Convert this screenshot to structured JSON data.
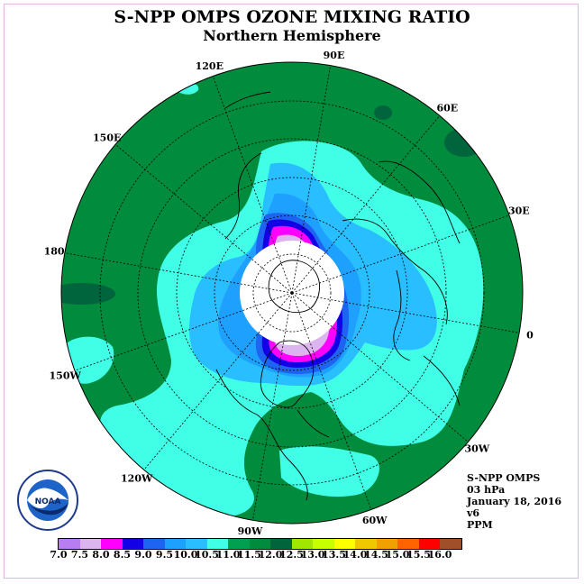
{
  "title": "S-NPP OMPS OZONE MIXING RATIO",
  "subtitle": "Northern Hemisphere",
  "longitude_labels": [
    {
      "text": "90E",
      "lon": 90
    },
    {
      "text": "60E",
      "lon": 60
    },
    {
      "text": "30E",
      "lon": 30
    },
    {
      "text": "0",
      "lon": 0
    },
    {
      "text": "30W",
      "lon": -30
    },
    {
      "text": "60W",
      "lon": -60
    },
    {
      "text": "90W",
      "lon": -90
    },
    {
      "text": "120W",
      "lon": -120
    },
    {
      "text": "150W",
      "lon": -150
    },
    {
      "text": "180",
      "lon": 180
    },
    {
      "text": "150E",
      "lon": 150
    },
    {
      "text": "120E",
      "lon": 120
    }
  ],
  "info": {
    "instrument": "S-NPP OMPS",
    "level": "03 hPa",
    "date": "January 18, 2016",
    "version": "v6",
    "units": "PPM"
  },
  "logo": {
    "text": "NOAA",
    "icon": "noaa-logo-icon"
  },
  "colorbar": {
    "ticks": [
      "7.0",
      "7.5",
      "8.0",
      "8.5",
      "9.0",
      "9.5",
      "10.0",
      "10.5",
      "11.0",
      "11.5",
      "12.0",
      "12.5",
      "13.0",
      "13.5",
      "14.0",
      "14.5",
      "15.0",
      "15.5",
      "16.0"
    ],
    "colors": [
      "#b87ef0",
      "#dcb4ef",
      "#ff00ff",
      "#1400e6",
      "#1e64f0",
      "#1ea0ff",
      "#28beff",
      "#40ffe6",
      "#00a050",
      "#008c3c",
      "#00643c",
      "#a0e600",
      "#c8ff00",
      "#ffff00",
      "#f0c800",
      "#f0a000",
      "#ff6400",
      "#ff0000",
      "#a05028"
    ]
  },
  "colors": {
    "background_green": "#008c3c",
    "cyan": "#40ffe6",
    "light_blue": "#28beff",
    "blue": "#1e64f0",
    "dark_blue": "#1400e6",
    "magenta": "#ff00ff",
    "lavender": "#dcb4ef"
  }
}
